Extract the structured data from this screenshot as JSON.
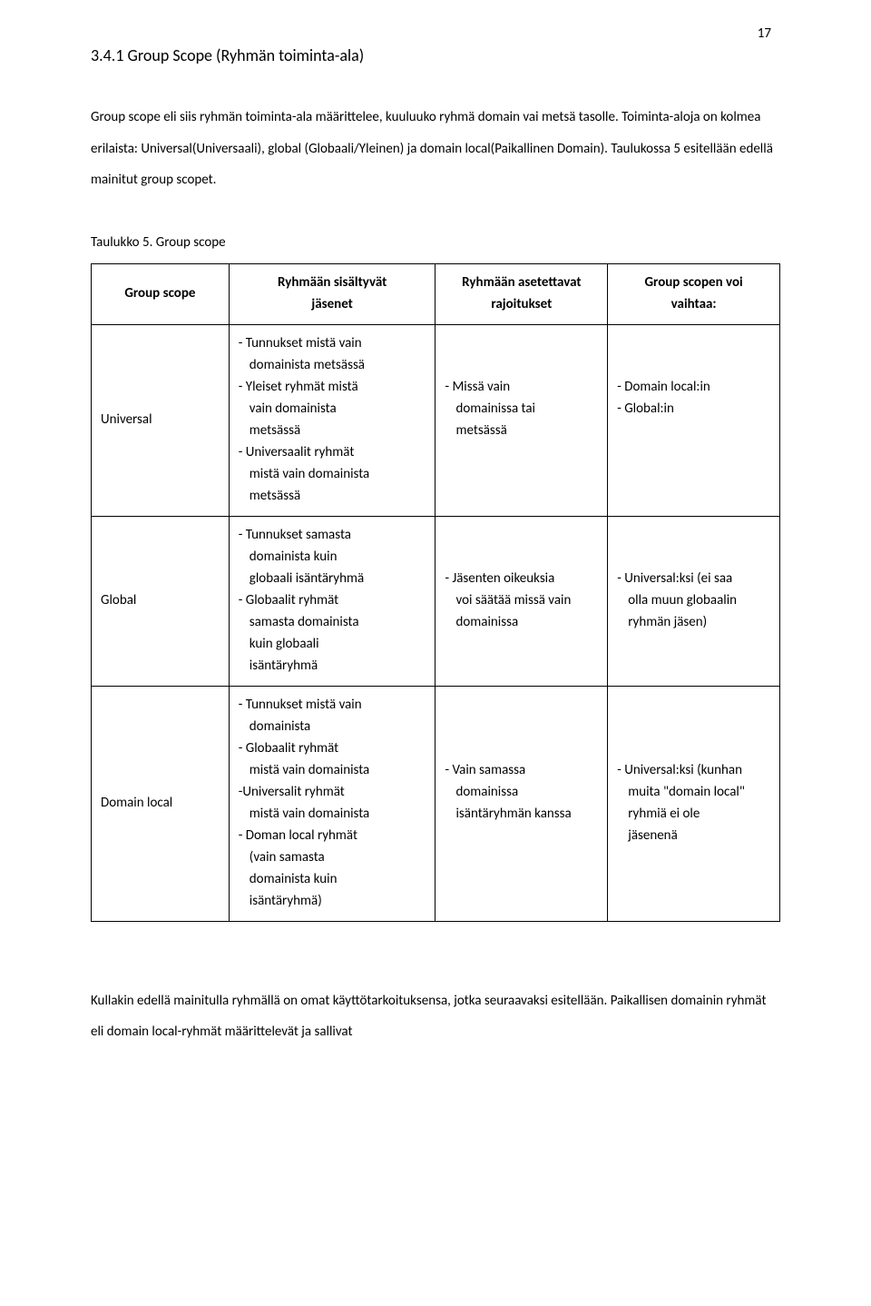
{
  "page_number": "17",
  "heading": "3.4.1  Group Scope (Ryhmän toiminta-ala)",
  "intro_paragraph": "Group scope eli siis ryhmän toiminta-ala määrittelee, kuuluuko ryhmä domain vai metsä tasolle. Toiminta-aloja on kolmea erilaista: Universal(Universaali), global (Globaali/Yleinen) ja domain local(Paikallinen Domain). Taulukossa 5 esitellään edellä mainitut group scopet.",
  "table_caption": "Taulukko 5. Group scope",
  "table": {
    "headers": [
      [
        "Group scope"
      ],
      [
        "Ryhmään sisältyvät",
        "jäsenet"
      ],
      [
        "Ryhmään asetettavat",
        "rajoitukset"
      ],
      [
        "Group scopen voi",
        "vaihtaa:"
      ]
    ],
    "rows": [
      {
        "scope": "Universal",
        "members": [
          "- Tunnukset mistä vain",
          "  domainista metsässä",
          "- Yleiset ryhmät mistä",
          "  vain domainista",
          "  metsässä",
          "- Universaalit ryhmät",
          "  mistä vain domainista",
          "  metsässä"
        ],
        "restrictions": [
          "",
          "",
          "- Missä vain",
          "  domainissa tai",
          "  metsässä"
        ],
        "change": [
          "",
          "",
          "- Domain local:in",
          "- Global:in"
        ]
      },
      {
        "scope": "Global",
        "members": [
          "- Tunnukset samasta",
          "  domainista kuin",
          "  globaali isäntäryhmä",
          "- Globaalit ryhmät",
          "  samasta domainista",
          "  kuin globaali",
          "  isäntäryhmä"
        ],
        "restrictions": [
          "",
          "",
          "- Jäsenten oikeuksia",
          "  voi säätää missä vain",
          "  domainissa"
        ],
        "change": [
          "",
          "",
          "- Universal:ksi (ei saa",
          "  olla muun globaalin",
          "  ryhmän jäsen)"
        ]
      },
      {
        "scope": "Domain local",
        "members": [
          "- Tunnukset mistä vain",
          "  domainista",
          "- Globaalit ryhmät",
          "  mistä vain domainista",
          "-Universalit ryhmät",
          "  mistä vain domainista",
          "- Doman local ryhmät",
          "  (vain samasta",
          "  domainista kuin",
          "  isäntäryhmä)"
        ],
        "restrictions": [
          "",
          "",
          "",
          "- Vain samassa",
          "  domainissa",
          "  isäntäryhmän kanssa"
        ],
        "change": [
          "",
          "",
          "",
          "- Universal:ksi (kunhan",
          "  muita \"domain local\"",
          "  ryhmiä ei ole",
          "  jäsenenä"
        ]
      }
    ]
  },
  "bottom_paragraph": "Kullakin edellä mainitulla ryhmällä on omat käyttötarkoituksensa, jotka seuraavaksi esitellään. Paikallisen domainin ryhmät eli domain local-ryhmät määrittelevät ja sallivat"
}
